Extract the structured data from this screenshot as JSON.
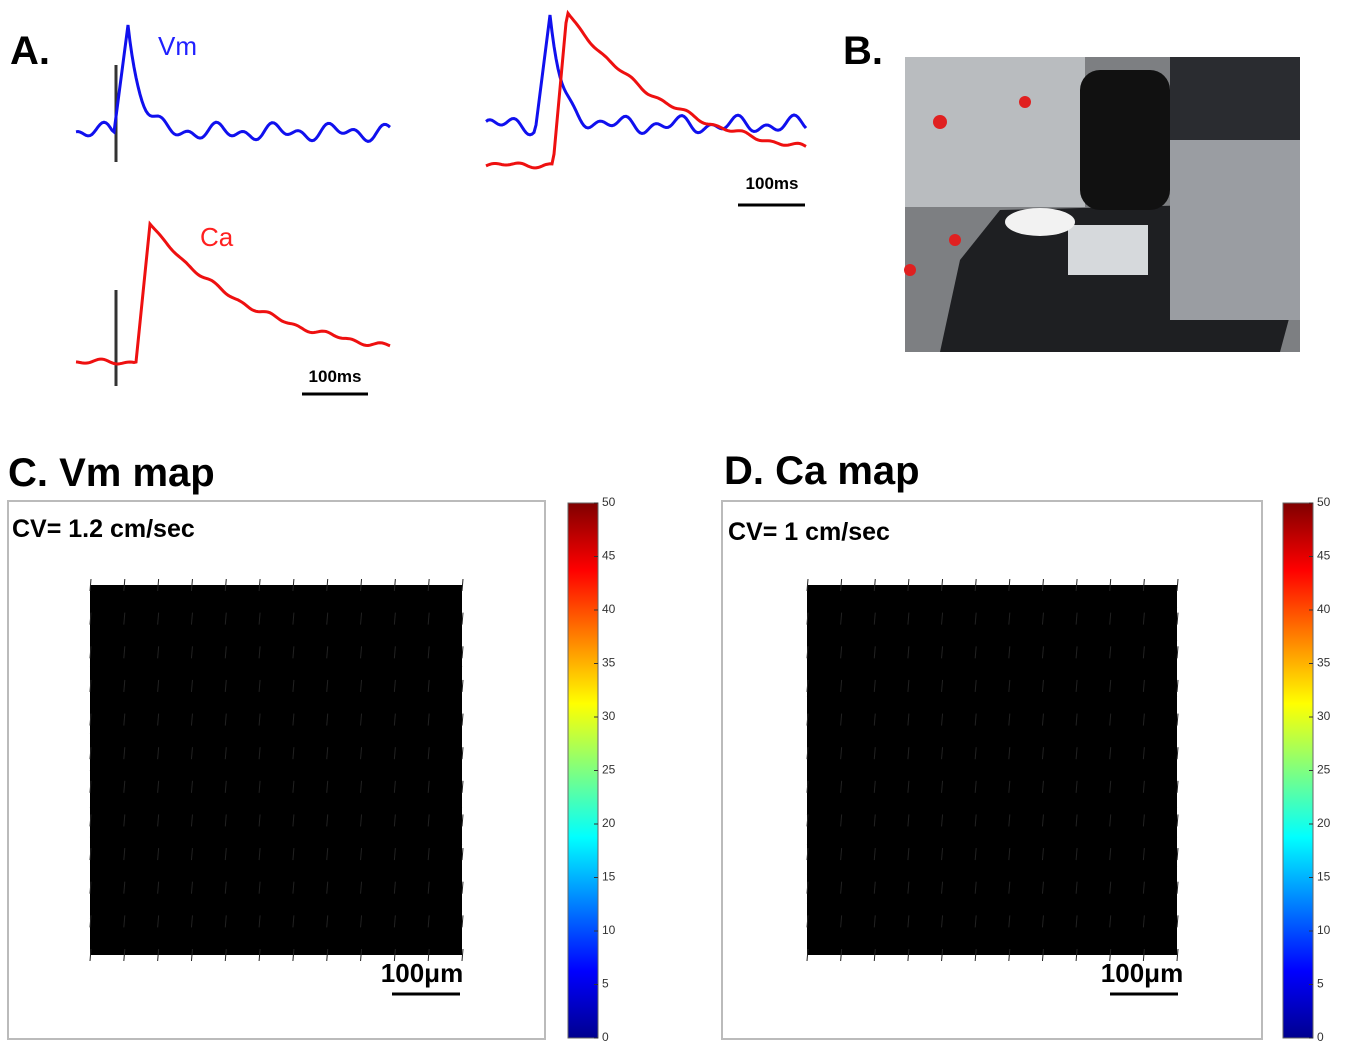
{
  "panel_a": {
    "label": "A.",
    "vm_label": "Vm",
    "ca_label": "Ca",
    "scale_bar_left": "100ms",
    "scale_bar_right": "100ms"
  },
  "panel_b": {
    "label": "B."
  },
  "panel_c": {
    "title": "C. Vm map",
    "cv": "CV= 1.2 cm/sec",
    "scale_bar": "100μm",
    "colorbar": {
      "lim": [
        0,
        50
      ],
      "ticks": [
        0,
        5,
        10,
        15,
        20,
        25,
        30,
        35,
        40,
        45,
        50
      ]
    }
  },
  "panel_d": {
    "title": "D. Ca map",
    "cv": "CV= 1 cm/sec",
    "scale_bar": "100μm",
    "colorbar": {
      "lim": [
        0,
        50
      ],
      "ticks": [
        0,
        5,
        10,
        15,
        20,
        25,
        30,
        35,
        40,
        45,
        50
      ]
    }
  }
}
